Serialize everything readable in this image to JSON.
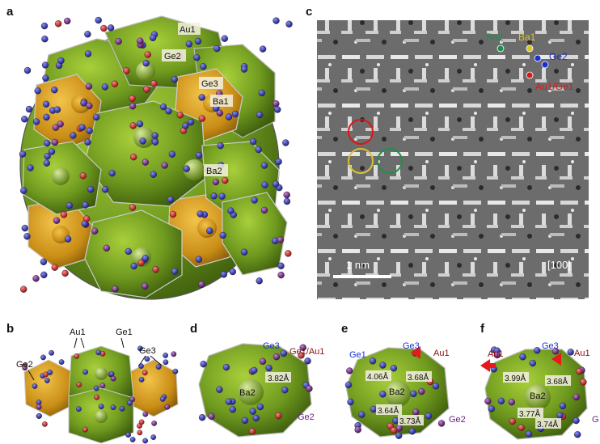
{
  "panels": {
    "a": {
      "letter": "a",
      "labels": [
        "Au1",
        "Ge2",
        "Ge3",
        "Ba1",
        "Ba2"
      ]
    },
    "b": {
      "letter": "b",
      "labels": [
        "Au1",
        "Ge1",
        "Ge2",
        "Ge3"
      ]
    },
    "c": {
      "letter": "c",
      "legend": [
        {
          "label": "Ba2",
          "color": "#1f8f4a"
        },
        {
          "label": "Ba1",
          "color": "#d8c431"
        },
        {
          "label": "Ge2",
          "color": "#1930d6"
        },
        {
          "label": "Au1/Ge1",
          "color": "#e01515"
        }
      ],
      "scalebar": "1 nm",
      "zone_axis": "[100]"
    },
    "d": {
      "letter": "d",
      "labels": [
        "Ge3",
        "Ge1/Au1",
        "Ba2",
        "3.82Å",
        "Ge2"
      ]
    },
    "e": {
      "letter": "e",
      "labels": [
        "Ge1",
        "Ge3",
        "Au1",
        "4.06Å",
        "3.68Å",
        "Ba2",
        "3.64Å",
        "3.73Å",
        "Ge2"
      ]
    },
    "f": {
      "letter": "f",
      "labels": [
        "Au1",
        "Ge3",
        "Au1",
        "3.99Å",
        "3.68Å",
        "Ba2",
        "3.77Å",
        "3.74Å",
        "G"
      ]
    }
  },
  "colors": {
    "cage_green": "#6f9a1f",
    "cage_orange": "#d59a1a",
    "atom_blue": "#2a2fae",
    "atom_red": "#c41a1a",
    "atom_purple": "#6a1f7a",
    "arrow_red": "#e8191a"
  }
}
